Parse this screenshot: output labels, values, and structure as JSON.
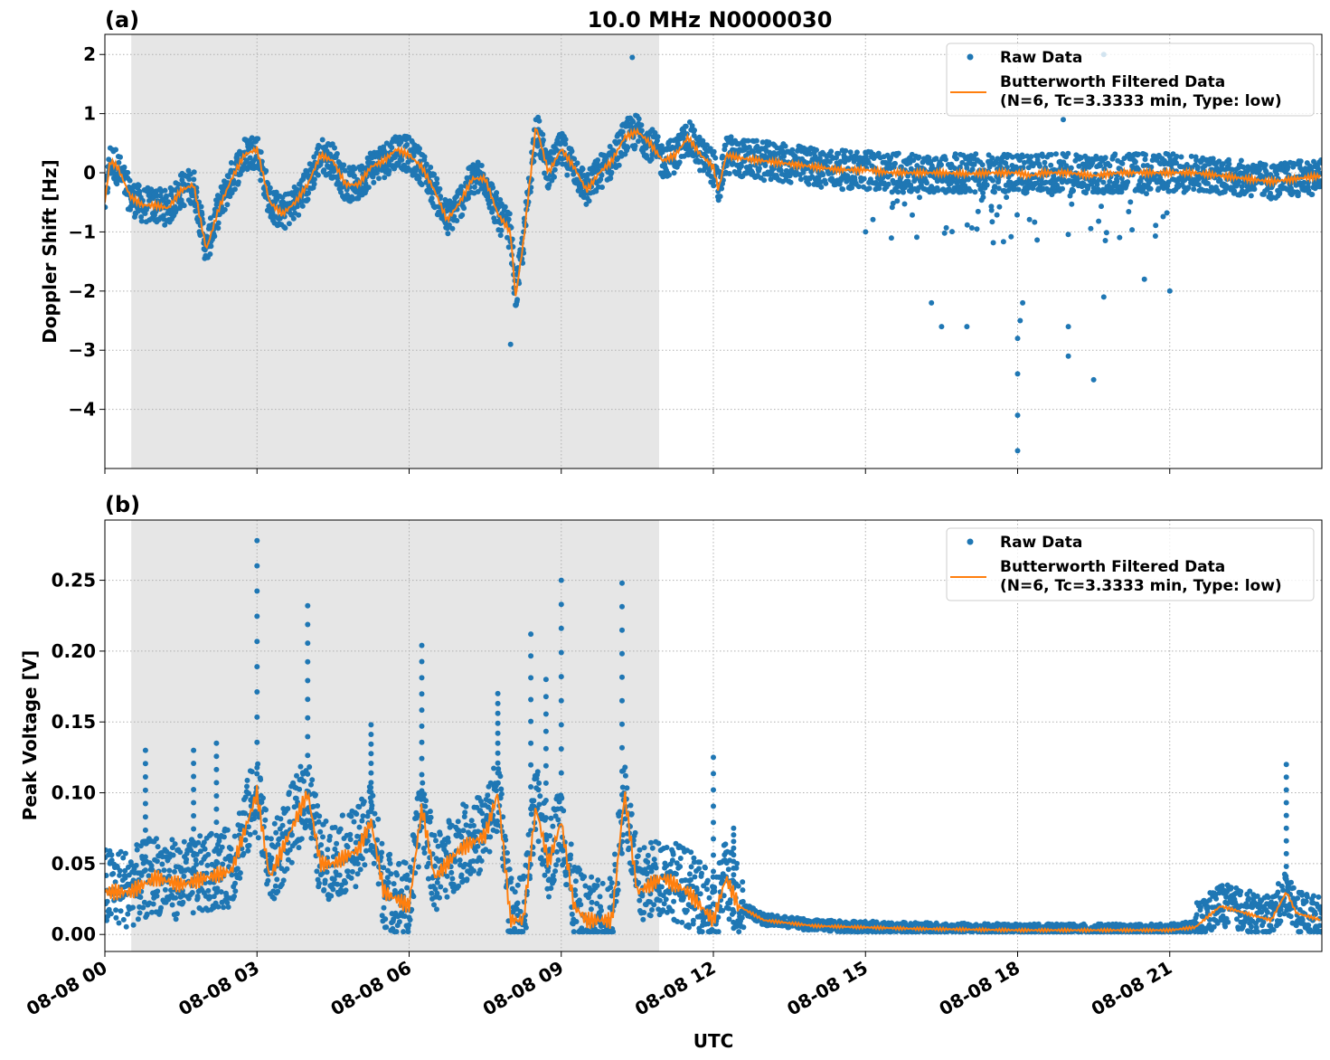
{
  "chart_data": [
    {
      "type": "scatter+line",
      "panel_label": "(a)",
      "title": "10.0 MHz N0000030",
      "ylabel": "Doppler Shift [Hz]",
      "xlabel": "",
      "xlim_hours": [
        0,
        24
      ],
      "ylim": [
        -5.0,
        2.34
      ],
      "yticks": [
        2,
        1,
        0,
        -1,
        -2,
        -3,
        -4
      ],
      "ytick_labels": [
        "2",
        "1",
        "0",
        "−1",
        "−2",
        "−3",
        "−4"
      ],
      "shaded_interval_hours": [
        0.52,
        10.93
      ],
      "grid": true,
      "legend_placement": "upper-right",
      "legend": [
        "Raw Data",
        "Butterworth Filtered Data",
        "(N=6, Tc=3.3333 min, Type: low)"
      ],
      "filtered": {
        "x": [
          0,
          0.1,
          0.25,
          0.5,
          0.75,
          1,
          1.25,
          1.5,
          1.75,
          2,
          2.25,
          2.5,
          2.75,
          3,
          3.25,
          3.5,
          3.75,
          4,
          4.25,
          4.5,
          4.75,
          5,
          5.25,
          5.5,
          5.75,
          6,
          6.25,
          6.5,
          6.75,
          7,
          7.25,
          7.5,
          7.75,
          8,
          8.1,
          8.25,
          8.5,
          8.75,
          9,
          9.25,
          9.5,
          9.75,
          10,
          10.25,
          10.5,
          10.75,
          11,
          11.25,
          11.5,
          11.75,
          12,
          12.1,
          12.25,
          12.5,
          13,
          13.5,
          14,
          14.5,
          15,
          15.5,
          16,
          16.5,
          17,
          17.5,
          18,
          18.25,
          18.5,
          19,
          19.5,
          20,
          20.5,
          21,
          21.5,
          22,
          22.5,
          23,
          23.5,
          24
        ],
        "y": [
          -0.5,
          0.2,
          0.1,
          -0.4,
          -0.55,
          -0.55,
          -0.6,
          -0.3,
          -0.2,
          -1.3,
          -0.6,
          -0.1,
          0.3,
          0.4,
          -0.5,
          -0.7,
          -0.5,
          -0.2,
          0.3,
          0.2,
          -0.2,
          -0.2,
          0.1,
          0.2,
          0.4,
          0.3,
          0.1,
          -0.3,
          -0.8,
          -0.5,
          -0.1,
          -0.1,
          -0.7,
          -1.0,
          -2.1,
          -1.2,
          0.8,
          0.0,
          0.4,
          0.1,
          -0.3,
          0.0,
          0.2,
          0.6,
          0.7,
          0.5,
          0.2,
          0.3,
          0.6,
          0.3,
          0.1,
          -0.3,
          0.3,
          0.25,
          0.2,
          0.15,
          0.1,
          0.05,
          0.05,
          0.0,
          0.0,
          0.0,
          -0.02,
          0.0,
          0.0,
          -0.05,
          0.0,
          0.0,
          -0.05,
          0.0,
          0.0,
          0.0,
          0.0,
          -0.05,
          -0.1,
          -0.15,
          -0.1,
          -0.05
        ]
      },
      "raw_spread": 0.3,
      "raw_outliers": [
        [
          16.3,
          -2.2
        ],
        [
          16.5,
          -2.6
        ],
        [
          17.0,
          -2.6
        ],
        [
          18.0,
          -4.7
        ],
        [
          18.0,
          -4.1
        ],
        [
          18.0,
          -3.4
        ],
        [
          18.0,
          -2.8
        ],
        [
          18.05,
          -2.5
        ],
        [
          18.1,
          -2.2
        ],
        [
          19.0,
          -3.1
        ],
        [
          19.0,
          -2.6
        ],
        [
          19.5,
          -3.5
        ],
        [
          19.7,
          -2.1
        ],
        [
          20.5,
          -1.8
        ],
        [
          21.0,
          -2.0
        ],
        [
          15.0,
          -1.0
        ],
        [
          18.9,
          0.9
        ],
        [
          19.7,
          2.0
        ],
        [
          10.4,
          1.95
        ],
        [
          8.0,
          -2.9
        ]
      ]
    },
    {
      "type": "scatter+line",
      "panel_label": "(b)",
      "ylabel": "Peak Voltage [V]",
      "xlabel": "UTC",
      "xlim_hours": [
        0,
        24
      ],
      "xticks_hours": [
        0,
        3,
        6,
        9,
        12,
        15,
        18,
        21
      ],
      "xtick_labels": [
        "08-08 00",
        "08-08 03",
        "08-08 06",
        "08-08 09",
        "08-08 12",
        "08-08 15",
        "08-08 18",
        "08-08 21"
      ],
      "ylim": [
        -0.012,
        0.2925
      ],
      "yticks": [
        0.0,
        0.05,
        0.1,
        0.15,
        0.2,
        0.25
      ],
      "ytick_labels": [
        "0.00",
        "0.05",
        "0.10",
        "0.15",
        "0.20",
        "0.25"
      ],
      "shaded_interval_hours": [
        0.52,
        10.93
      ],
      "grid": true,
      "legend_placement": "upper-right",
      "legend": [
        "Raw Data",
        "Butterworth Filtered Data",
        "(N=6, Tc=3.3333 min, Type: low)"
      ],
      "filtered": {
        "x": [
          0,
          0.5,
          1,
          1.5,
          2,
          2.5,
          3,
          3.25,
          3.5,
          4,
          4.25,
          4.5,
          5,
          5.25,
          5.5,
          6,
          6.25,
          6.5,
          7,
          7.5,
          7.75,
          8,
          8.25,
          8.5,
          8.75,
          9,
          9.25,
          9.5,
          10,
          10.25,
          10.5,
          11,
          11.5,
          12,
          12.25,
          12.5,
          13,
          13.5,
          14,
          15,
          16,
          18,
          20,
          21,
          21.5,
          22,
          22.5,
          23,
          23.3,
          23.5,
          24
        ],
        "y": [
          0.03,
          0.03,
          0.04,
          0.035,
          0.04,
          0.045,
          0.1,
          0.04,
          0.06,
          0.1,
          0.05,
          0.05,
          0.06,
          0.08,
          0.03,
          0.02,
          0.09,
          0.04,
          0.06,
          0.07,
          0.1,
          0.01,
          0.01,
          0.09,
          0.05,
          0.08,
          0.02,
          0.01,
          0.01,
          0.1,
          0.03,
          0.04,
          0.03,
          0.01,
          0.04,
          0.02,
          0.01,
          0.008,
          0.006,
          0.005,
          0.004,
          0.003,
          0.003,
          0.003,
          0.005,
          0.02,
          0.015,
          0.01,
          0.03,
          0.015,
          0.01
        ]
      },
      "raw_outliers": [
        [
          3.0,
          0.278
        ],
        [
          4.0,
          0.232
        ],
        [
          5.25,
          0.148
        ],
        [
          6.25,
          0.204
        ],
        [
          7.75,
          0.17
        ],
        [
          8.4,
          0.212
        ],
        [
          8.7,
          0.18
        ],
        [
          9.0,
          0.25
        ],
        [
          10.2,
          0.248
        ],
        [
          12.0,
          0.125
        ],
        [
          23.3,
          0.12
        ],
        [
          0.8,
          0.13
        ],
        [
          1.75,
          0.13
        ],
        [
          2.2,
          0.135
        ],
        [
          12.4,
          0.075
        ]
      ]
    }
  ],
  "colors": {
    "raw": "#1f77b4",
    "filtered": "#ff7f0e",
    "shade": "#e6e6e6",
    "grid": "#b0b0b0"
  }
}
